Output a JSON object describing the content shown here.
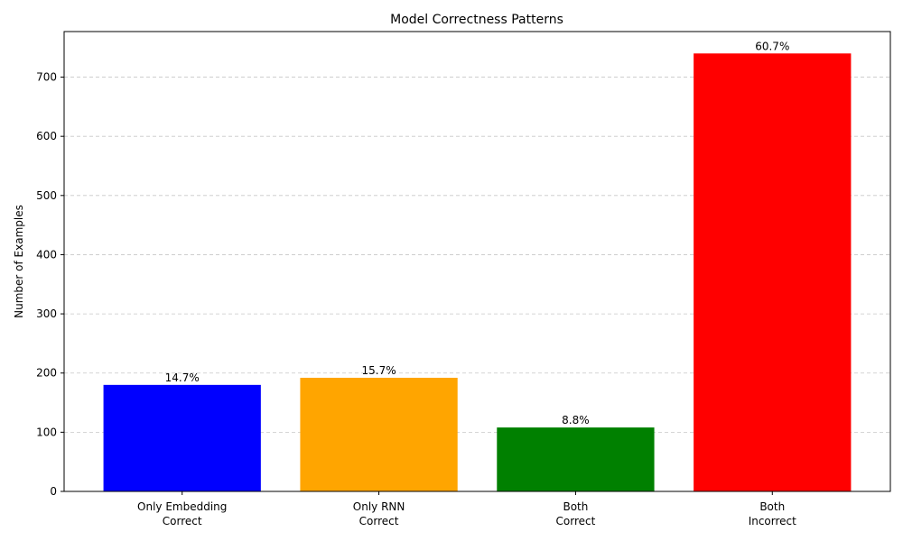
{
  "chart_data": {
    "type": "bar",
    "title": "Model Correctness Patterns",
    "xlabel": "",
    "ylabel": "Number of Examples",
    "categories": [
      "Only Embedding\nCorrect",
      "Only RNN\nCorrect",
      "Both\nCorrect",
      "Both\nIncorrect"
    ],
    "values": [
      180,
      192,
      108,
      740
    ],
    "data_labels": [
      "14.7%",
      "15.7%",
      "8.8%",
      "60.7%"
    ],
    "colors": [
      "#0000ff",
      "#ffa500",
      "#008000",
      "#ff0000"
    ],
    "ylim": [
      0,
      777
    ],
    "yticks": [
      0,
      100,
      200,
      300,
      400,
      500,
      600,
      700
    ],
    "grid": "y-dashed",
    "legend": "none"
  }
}
